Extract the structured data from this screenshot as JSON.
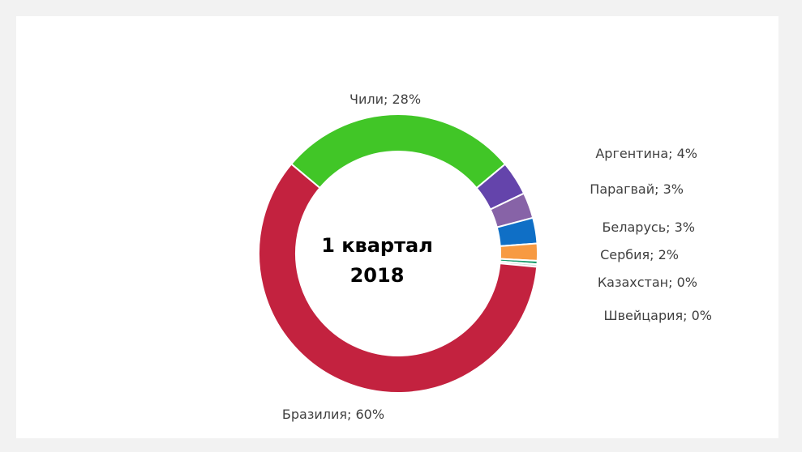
{
  "chart_data": {
    "type": "pie",
    "title": "",
    "center_text": [
      "1 квартал",
      "2018"
    ],
    "series": [
      {
        "category": "Чили",
        "value": 28,
        "label": "Чили; 28%",
        "color": "#41c627"
      },
      {
        "category": "Аргентина",
        "value": 4,
        "label": "Аргентина; 4%",
        "color": "#6444ab"
      },
      {
        "category": "Парагвай",
        "value": 3,
        "label": "Парагвай; 3%",
        "color": "#8763a7"
      },
      {
        "category": "Беларусь",
        "value": 3,
        "label": "Беларусь; 3%",
        "color": "#0f6fc6"
      },
      {
        "category": "Сербия",
        "value": 2,
        "label": "Сербия; 2%",
        "color": "#f79a42"
      },
      {
        "category": "Казахстан",
        "value": 0.4,
        "label": "Казахстан; 0%",
        "color": "#1e9e6f"
      },
      {
        "category": "Швейцария",
        "value": 0.3,
        "label": "Швейцария; 0%",
        "color": "#d9d9d9"
      },
      {
        "category": "Бразилия",
        "value": 60,
        "label": "Бразилия; 60%",
        "color": "#c3223f"
      }
    ],
    "donut": true,
    "legend": "none"
  }
}
